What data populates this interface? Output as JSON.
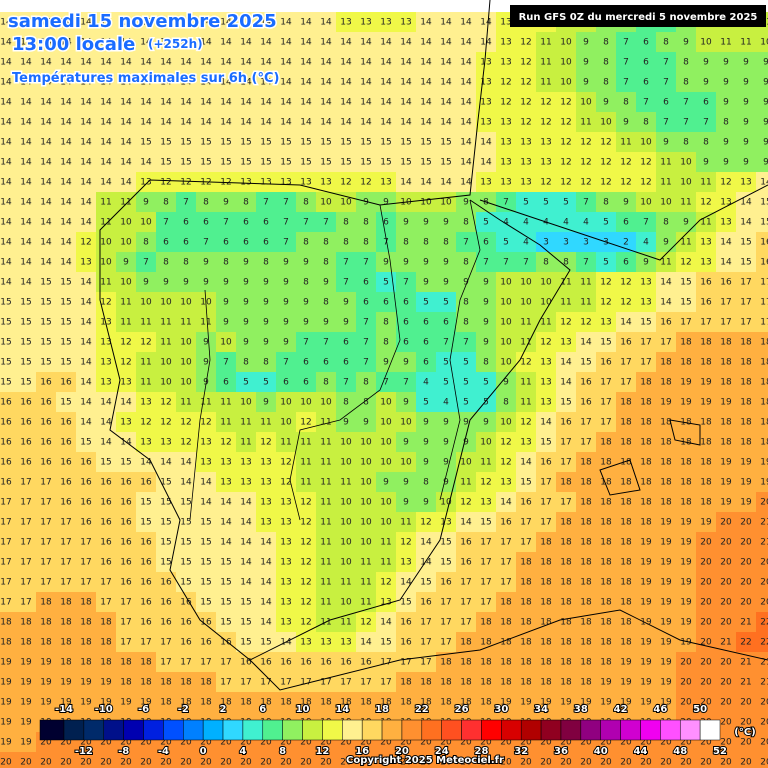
{
  "header": {
    "date": "samedi 15 novembre 2025",
    "time": "13:00 locale",
    "lead": "(+252h)",
    "subtitle": "Températures maximales sur 6h (°C)",
    "run": "Run GFS 0Z du mercredi 5 novembre 2025"
  },
  "grid": {
    "rows": [
      [
        14,
        14,
        14,
        14,
        14,
        14,
        14,
        14,
        14,
        14,
        14,
        14,
        14,
        14,
        14,
        14,
        14,
        13,
        13,
        13,
        13,
        14,
        14,
        14,
        14,
        13,
        13,
        12,
        11,
        10,
        9,
        8,
        7,
        6,
        9,
        10,
        11,
        11,
        11
      ],
      [
        14,
        14,
        14,
        14,
        14,
        14,
        14,
        14,
        14,
        14,
        14,
        14,
        14,
        14,
        14,
        14,
        14,
        14,
        14,
        14,
        14,
        14,
        14,
        14,
        14,
        13,
        12,
        11,
        10,
        9,
        8,
        7,
        6,
        8,
        9,
        10,
        11,
        11,
        10
      ],
      [
        14,
        14,
        14,
        14,
        14,
        14,
        14,
        14,
        14,
        14,
        14,
        14,
        14,
        14,
        14,
        14,
        14,
        14,
        14,
        14,
        14,
        14,
        14,
        14,
        13,
        13,
        12,
        11,
        10,
        9,
        8,
        7,
        6,
        7,
        8,
        9,
        9,
        9,
        9
      ],
      [
        14,
        14,
        14,
        14,
        14,
        14,
        14,
        14,
        14,
        14,
        14,
        14,
        14,
        14,
        14,
        14,
        14,
        14,
        14,
        14,
        14,
        14,
        14,
        14,
        13,
        12,
        12,
        11,
        10,
        9,
        8,
        7,
        6,
        7,
        8,
        9,
        9,
        9,
        9
      ],
      [
        14,
        14,
        14,
        14,
        14,
        14,
        14,
        14,
        14,
        14,
        14,
        14,
        14,
        14,
        14,
        14,
        14,
        14,
        14,
        14,
        14,
        14,
        14,
        14,
        13,
        12,
        12,
        12,
        12,
        10,
        9,
        8,
        7,
        6,
        7,
        6,
        9,
        9,
        9
      ],
      [
        14,
        14,
        14,
        14,
        14,
        14,
        14,
        14,
        14,
        14,
        14,
        14,
        14,
        14,
        14,
        14,
        14,
        14,
        14,
        14,
        14,
        14,
        14,
        14,
        13,
        13,
        12,
        12,
        12,
        11,
        10,
        9,
        8,
        7,
        7,
        7,
        8,
        9,
        9
      ],
      [
        14,
        14,
        14,
        14,
        14,
        14,
        14,
        15,
        15,
        15,
        15,
        15,
        15,
        15,
        15,
        15,
        15,
        15,
        15,
        15,
        15,
        15,
        15,
        14,
        14,
        13,
        13,
        13,
        12,
        12,
        12,
        11,
        10,
        9,
        8,
        8,
        9,
        9,
        9
      ],
      [
        14,
        14,
        14,
        14,
        14,
        14,
        14,
        14,
        15,
        15,
        15,
        15,
        15,
        15,
        15,
        15,
        15,
        15,
        15,
        15,
        15,
        15,
        15,
        14,
        14,
        13,
        13,
        13,
        12,
        12,
        12,
        12,
        12,
        11,
        10,
        9,
        9,
        9,
        9
      ],
      [
        14,
        14,
        14,
        14,
        14,
        14,
        14,
        13,
        12,
        12,
        12,
        12,
        13,
        13,
        13,
        13,
        13,
        12,
        12,
        13,
        14,
        14,
        14,
        14,
        13,
        13,
        13,
        12,
        12,
        12,
        12,
        12,
        12,
        11,
        10,
        11,
        12,
        13,
        14
      ],
      [
        14,
        14,
        14,
        14,
        14,
        11,
        11,
        9,
        8,
        7,
        8,
        9,
        8,
        7,
        7,
        8,
        10,
        10,
        9,
        9,
        10,
        10,
        10,
        9,
        8,
        7,
        5,
        5,
        5,
        7,
        8,
        9,
        10,
        10,
        11,
        12,
        13,
        14,
        15
      ],
      [
        14,
        14,
        14,
        14,
        14,
        11,
        10,
        10,
        7,
        6,
        6,
        7,
        6,
        6,
        7,
        7,
        7,
        8,
        8,
        6,
        9,
        9,
        9,
        8,
        5,
        4,
        4,
        4,
        4,
        4,
        5,
        6,
        7,
        8,
        9,
        11,
        13,
        14,
        15
      ],
      [
        14,
        14,
        14,
        14,
        12,
        10,
        10,
        8,
        6,
        6,
        7,
        6,
        6,
        6,
        7,
        8,
        8,
        8,
        8,
        7,
        8,
        8,
        8,
        7,
        6,
        5,
        4,
        3,
        3,
        3,
        3,
        2,
        4,
        9,
        11,
        13,
        14,
        15,
        16
      ],
      [
        14,
        14,
        14,
        14,
        13,
        10,
        9,
        7,
        8,
        8,
        9,
        8,
        9,
        8,
        9,
        9,
        8,
        7,
        7,
        9,
        9,
        9,
        9,
        8,
        7,
        7,
        7,
        8,
        8,
        7,
        5,
        6,
        9,
        11,
        12,
        13,
        14,
        15,
        16
      ],
      [
        14,
        14,
        15,
        15,
        14,
        11,
        10,
        9,
        9,
        9,
        9,
        9,
        9,
        9,
        9,
        8,
        9,
        7,
        6,
        5,
        7,
        9,
        9,
        9,
        9,
        10,
        10,
        10,
        11,
        11,
        12,
        12,
        13,
        14,
        15,
        16,
        16,
        17,
        17
      ],
      [
        15,
        15,
        15,
        15,
        14,
        12,
        11,
        10,
        10,
        10,
        10,
        9,
        9,
        9,
        9,
        9,
        8,
        9,
        6,
        6,
        6,
        5,
        5,
        8,
        9,
        10,
        10,
        10,
        11,
        11,
        12,
        12,
        13,
        14,
        15,
        16,
        17,
        17,
        17
      ],
      [
        15,
        15,
        15,
        15,
        14,
        13,
        11,
        11,
        11,
        11,
        11,
        9,
        9,
        9,
        9,
        9,
        9,
        9,
        7,
        8,
        6,
        6,
        6,
        8,
        9,
        10,
        11,
        11,
        12,
        12,
        13,
        14,
        15,
        16,
        17,
        17,
        17,
        17,
        17
      ],
      [
        15,
        15,
        15,
        15,
        14,
        13,
        12,
        12,
        11,
        10,
        9,
        10,
        9,
        9,
        9,
        7,
        7,
        6,
        7,
        8,
        6,
        6,
        7,
        7,
        9,
        10,
        11,
        12,
        13,
        14,
        15,
        16,
        17,
        17,
        18,
        18,
        18,
        18,
        18
      ],
      [
        15,
        15,
        15,
        15,
        14,
        13,
        12,
        11,
        10,
        10,
        9,
        7,
        8,
        8,
        7,
        6,
        6,
        6,
        7,
        9,
        9,
        6,
        5,
        5,
        8,
        10,
        12,
        13,
        14,
        15,
        16,
        17,
        17,
        18,
        18,
        18,
        18,
        18,
        18
      ],
      [
        15,
        15,
        16,
        16,
        14,
        13,
        13,
        11,
        10,
        10,
        9,
        6,
        5,
        5,
        6,
        6,
        8,
        7,
        8,
        7,
        7,
        4,
        5,
        5,
        5,
        9,
        11,
        13,
        14,
        16,
        17,
        17,
        18,
        18,
        19,
        19,
        18,
        18,
        18
      ],
      [
        16,
        16,
        16,
        15,
        14,
        14,
        14,
        13,
        12,
        11,
        11,
        11,
        10,
        9,
        10,
        10,
        10,
        8,
        8,
        10,
        9,
        5,
        4,
        5,
        5,
        8,
        11,
        13,
        15,
        16,
        17,
        18,
        18,
        19,
        19,
        19,
        19,
        18,
        18
      ],
      [
        16,
        16,
        16,
        16,
        14,
        14,
        13,
        12,
        12,
        12,
        12,
        11,
        11,
        11,
        10,
        12,
        11,
        9,
        9,
        10,
        10,
        9,
        9,
        9,
        9,
        10,
        12,
        14,
        16,
        17,
        17,
        18,
        18,
        18,
        18,
        18,
        18,
        18,
        18
      ],
      [
        16,
        16,
        16,
        16,
        15,
        14,
        14,
        13,
        13,
        12,
        13,
        12,
        11,
        12,
        11,
        11,
        11,
        10,
        10,
        10,
        9,
        9,
        9,
        9,
        10,
        12,
        13,
        15,
        17,
        17,
        18,
        18,
        18,
        18,
        18,
        18,
        18,
        18,
        18
      ],
      [
        16,
        16,
        16,
        16,
        16,
        15,
        15,
        14,
        14,
        14,
        13,
        13,
        13,
        13,
        12,
        11,
        11,
        10,
        10,
        10,
        10,
        9,
        9,
        10,
        11,
        12,
        14,
        16,
        17,
        18,
        18,
        18,
        18,
        18,
        18,
        18,
        19,
        19,
        19
      ],
      [
        16,
        17,
        17,
        16,
        16,
        16,
        16,
        16,
        15,
        14,
        14,
        13,
        13,
        13,
        12,
        11,
        11,
        11,
        10,
        9,
        9,
        8,
        9,
        11,
        12,
        13,
        15,
        17,
        18,
        18,
        18,
        18,
        18,
        18,
        18,
        18,
        19,
        19,
        19
      ],
      [
        17,
        17,
        17,
        16,
        16,
        16,
        16,
        15,
        15,
        15,
        14,
        14,
        14,
        13,
        13,
        12,
        11,
        10,
        10,
        10,
        9,
        9,
        10,
        12,
        13,
        14,
        16,
        17,
        17,
        18,
        18,
        18,
        18,
        18,
        18,
        18,
        19,
        19,
        20
      ],
      [
        17,
        17,
        17,
        17,
        16,
        16,
        16,
        15,
        15,
        15,
        15,
        14,
        14,
        13,
        13,
        12,
        11,
        10,
        10,
        10,
        11,
        12,
        13,
        14,
        15,
        16,
        17,
        17,
        18,
        18,
        18,
        18,
        18,
        19,
        19,
        19,
        20,
        20,
        21
      ],
      [
        17,
        17,
        17,
        17,
        17,
        16,
        16,
        16,
        15,
        15,
        15,
        14,
        14,
        14,
        13,
        12,
        11,
        10,
        10,
        11,
        12,
        14,
        15,
        16,
        17,
        17,
        17,
        18,
        18,
        18,
        18,
        18,
        19,
        19,
        19,
        20,
        20,
        20,
        21
      ],
      [
        17,
        17,
        17,
        17,
        17,
        16,
        16,
        16,
        15,
        15,
        15,
        15,
        14,
        14,
        13,
        12,
        11,
        10,
        11,
        11,
        13,
        14,
        15,
        16,
        17,
        17,
        18,
        18,
        18,
        18,
        18,
        18,
        19,
        19,
        19,
        20,
        20,
        20,
        20
      ],
      [
        17,
        17,
        17,
        17,
        17,
        17,
        16,
        16,
        16,
        15,
        15,
        15,
        14,
        14,
        13,
        12,
        11,
        11,
        11,
        12,
        14,
        15,
        16,
        17,
        17,
        17,
        18,
        18,
        18,
        18,
        18,
        18,
        19,
        19,
        19,
        20,
        20,
        20,
        20
      ],
      [
        17,
        17,
        18,
        18,
        18,
        17,
        17,
        16,
        16,
        16,
        15,
        15,
        15,
        14,
        13,
        12,
        11,
        10,
        11,
        13,
        15,
        16,
        17,
        17,
        17,
        18,
        18,
        18,
        18,
        18,
        18,
        18,
        19,
        19,
        19,
        20,
        20,
        20,
        20
      ],
      [
        18,
        18,
        18,
        18,
        18,
        18,
        17,
        16,
        16,
        16,
        16,
        15,
        15,
        14,
        13,
        12,
        11,
        11,
        12,
        14,
        16,
        17,
        17,
        17,
        18,
        18,
        18,
        18,
        18,
        18,
        18,
        18,
        19,
        19,
        19,
        20,
        20,
        21,
        22
      ],
      [
        18,
        18,
        18,
        18,
        18,
        18,
        17,
        17,
        17,
        16,
        16,
        16,
        15,
        15,
        14,
        13,
        13,
        13,
        14,
        15,
        16,
        17,
        17,
        18,
        18,
        18,
        18,
        18,
        18,
        18,
        18,
        18,
        19,
        19,
        19,
        20,
        21,
        22,
        22
      ],
      [
        19,
        19,
        19,
        18,
        18,
        18,
        18,
        18,
        17,
        17,
        17,
        17,
        16,
        16,
        16,
        16,
        16,
        16,
        16,
        17,
        17,
        17,
        18,
        18,
        18,
        18,
        18,
        18,
        18,
        18,
        18,
        19,
        19,
        19,
        20,
        20,
        20,
        21,
        21
      ],
      [
        19,
        19,
        19,
        19,
        19,
        19,
        18,
        18,
        18,
        18,
        18,
        17,
        17,
        17,
        17,
        17,
        17,
        17,
        17,
        17,
        18,
        18,
        18,
        18,
        18,
        18,
        18,
        18,
        18,
        18,
        19,
        19,
        19,
        19,
        20,
        20,
        20,
        21,
        21
      ],
      [
        19,
        19,
        19,
        19,
        19,
        19,
        19,
        19,
        18,
        18,
        18,
        18,
        18,
        18,
        18,
        18,
        18,
        18,
        18,
        18,
        18,
        18,
        18,
        18,
        18,
        19,
        19,
        19,
        19,
        19,
        19,
        19,
        19,
        19,
        20,
        20,
        20,
        20,
        20
      ],
      [
        19,
        19,
        19,
        19,
        19,
        19,
        19,
        19,
        19,
        19,
        19,
        19,
        19,
        19,
        19,
        19,
        19,
        19,
        19,
        19,
        19,
        19,
        19,
        19,
        19,
        19,
        19,
        19,
        19,
        19,
        19,
        19,
        19,
        19,
        20,
        20,
        20,
        20,
        20
      ],
      [
        19,
        19,
        20,
        20,
        20,
        20,
        20,
        20,
        20,
        20,
        20,
        20,
        20,
        20,
        20,
        20,
        20,
        20,
        20,
        20,
        20,
        20,
        20,
        20,
        20,
        20,
        20,
        20,
        20,
        20,
        20,
        20,
        20,
        20,
        20,
        20,
        20,
        20,
        20
      ],
      [
        20,
        20,
        20,
        20,
        20,
        20,
        20,
        20,
        20,
        20,
        20,
        20,
        20,
        20,
        20,
        20,
        20,
        20,
        20,
        20,
        20,
        20,
        20,
        20,
        20,
        20,
        20,
        20,
        20,
        20,
        20,
        20,
        20,
        20,
        20,
        20,
        20,
        20,
        20
      ]
    ]
  },
  "colorbar": {
    "unit": "(°C)",
    "ticks": [
      -14,
      -12,
      -10,
      -8,
      -6,
      -4,
      -2,
      0,
      2,
      4,
      6,
      8,
      10,
      12,
      14,
      16,
      18,
      20,
      22,
      24,
      26,
      28,
      30,
      32,
      34,
      36,
      38,
      40,
      42,
      44,
      46,
      48,
      50,
      52
    ],
    "colors": [
      "#000030",
      "#002050",
      "#002a6a",
      "#00108a",
      "#0000b0",
      "#0020e0",
      "#0050ff",
      "#0080ff",
      "#00b0ff",
      "#30d8ff",
      "#40f0d0",
      "#50f090",
      "#90f060",
      "#c8f040",
      "#f0f848",
      "#fff090",
      "#ffd860",
      "#ffb040",
      "#ff9030",
      "#ff7020",
      "#ff5020",
      "#ff3030",
      "#ff0000",
      "#d80000",
      "#b00000",
      "#900020",
      "#800040",
      "#900080",
      "#b000b0",
      "#d000d0",
      "#f000f0",
      "#ff50ff",
      "#ff90ff",
      "#ffffff"
    ]
  },
  "footer": {
    "copyright": "Copyright 2025 Meteociel.fr"
  }
}
